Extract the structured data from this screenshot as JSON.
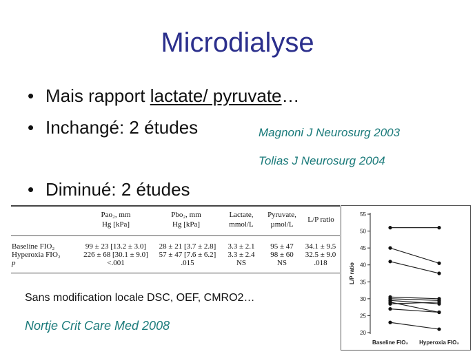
{
  "slide": {
    "title": "Microdialyse",
    "bullets": [
      {
        "marker": "•",
        "pre": "Mais rapport ",
        "underlined": "lactate/ pyruvate",
        "post": "…"
      },
      {
        "marker": "•",
        "text": "Inchangé: 2 études"
      },
      {
        "marker": "•",
        "text": "Diminué: 2 études"
      }
    ],
    "references": [
      "Magnoni J Neurosurg 2003",
      "Tolias J Neurosurg 2004"
    ],
    "note": "Sans modification locale DSC, OEF, CMRO2…",
    "citation": "Nortje Crit Care Med 2008"
  },
  "table": {
    "headers": [
      {
        "line1": "Pao₂, mm",
        "line2": "Hg [kPa]"
      },
      {
        "line1": "Pbo₂, mm",
        "line2": "Hg [kPa]"
      },
      {
        "line1": "Lactate,",
        "line2": "mmol/L"
      },
      {
        "line1": "Pyruvate,",
        "line2": "µmol/L"
      },
      {
        "line1": "L/P ratio",
        "line2": ""
      }
    ],
    "row_labels": [
      "Baseline FIO₂",
      "Hyperoxia FIO₂",
      "p"
    ],
    "rows": [
      [
        "99 ± 23 [13.2 ± 3.0]",
        "28 ± 21 [3.7 ± 2.8]",
        "3.3 ± 2.1",
        "95 ± 47",
        "34.1 ± 9.5"
      ],
      [
        "226 ± 68 [30.1 ± 9.0]",
        "57 ± 47 [7.6 ± 6.2]",
        "3.3 ± 2.4",
        "98 ± 60",
        "32.5 ± 9.0"
      ],
      [
        "<.001",
        ".015",
        "NS",
        "NS",
        ".018"
      ]
    ]
  },
  "chart_data": {
    "type": "line",
    "categories": [
      "Baseline FIO₂",
      "Hyperoxia FIO₂"
    ],
    "ylabel": "L/P ratio",
    "ylim": [
      20,
      55
    ],
    "yticks": [
      20,
      25,
      30,
      35,
      40,
      45,
      50,
      55
    ],
    "grid": false,
    "series": [
      {
        "values": [
          51,
          51
        ]
      },
      {
        "values": [
          45,
          40.5
        ]
      },
      {
        "values": [
          41,
          37.5
        ]
      },
      {
        "values": [
          30.5,
          30
        ]
      },
      {
        "values": [
          30,
          29.5
        ]
      },
      {
        "values": [
          29.5,
          28.5
        ]
      },
      {
        "values": [
          29,
          26
        ]
      },
      {
        "values": [
          28.5,
          29
        ]
      },
      {
        "values": [
          27,
          26
        ]
      },
      {
        "values": [
          23,
          21
        ]
      }
    ]
  }
}
